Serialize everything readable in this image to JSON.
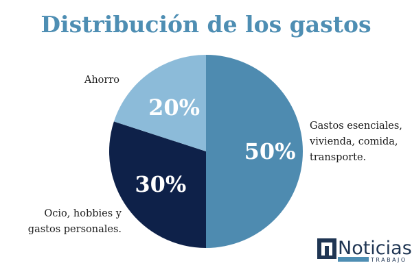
{
  "colors": {
    "title": "#4e8eb3",
    "background": "#ffffff",
    "logo_dark": "#1f3553",
    "logo_accent": "#4e8eb3"
  },
  "logo": {
    "icon": "n-letter-icon",
    "name": "Noticias",
    "sub": "TRABAJO"
  },
  "chart_data": {
    "type": "pie",
    "title": "Distribución de los gastos",
    "start": "top, clockwise",
    "slices": [
      {
        "label_lines": [
          "Gastos esenciales,",
          "vivienda, comida,",
          "transporte."
        ],
        "value": 50,
        "value_label": "50%",
        "color": "#4e8bb0"
      },
      {
        "label_lines": [
          "Ocio, hobbies y",
          "gastos personales."
        ],
        "value": 30,
        "value_label": "30%",
        "color": "#0e2149"
      },
      {
        "label_lines": [
          "Ahorro"
        ],
        "value": 20,
        "value_label": "20%",
        "color": "#8cbbd9"
      }
    ]
  }
}
